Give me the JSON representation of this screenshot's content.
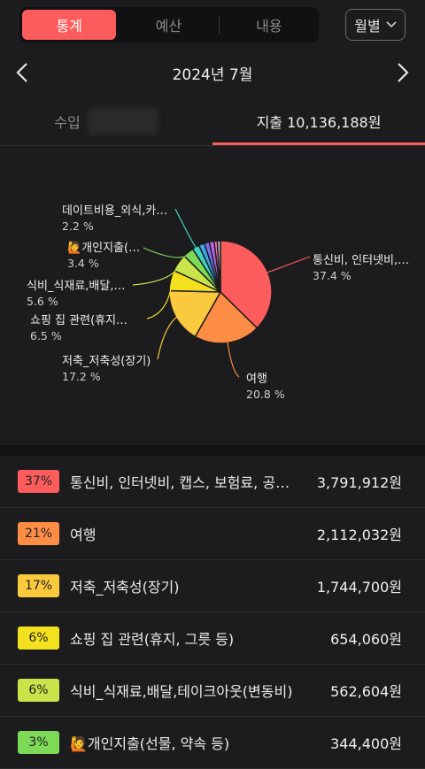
{
  "segment": {
    "tabs": [
      {
        "label": "통계",
        "active": true
      },
      {
        "label": "예산",
        "active": false
      },
      {
        "label": "내용",
        "active": false
      }
    ]
  },
  "period_select": {
    "value": "월별"
  },
  "month": {
    "title": "2024년 7월"
  },
  "tabs": {
    "income_label": "수입",
    "expense_label": "지출 10,136,188원"
  },
  "chart_data": {
    "type": "pie",
    "slices": [
      {
        "label": "통신비, 인터넷비,…",
        "pct_label": "37.4 %",
        "value": 37.4,
        "color": "#fc5c5c"
      },
      {
        "label": "여행",
        "pct_label": "20.8 %",
        "value": 20.8,
        "color": "#fd8c45"
      },
      {
        "label": "저축_저축성(장기)",
        "pct_label": "17.2 %",
        "value": 17.2,
        "color": "#fbc93d"
      },
      {
        "label": "쇼핑 집 관련(휴지…",
        "pct_label": "6.5 %",
        "value": 6.5,
        "color": "#f3e11f"
      },
      {
        "label": "식비_식재료,배달,…",
        "pct_label": "5.6 %",
        "value": 5.6,
        "color": "#c9e34a"
      },
      {
        "label": "🙋개인지출(…",
        "pct_label": "3.4 %",
        "value": 3.4,
        "color": "#7ed957"
      },
      {
        "label": "데이트비용_외식,카…",
        "pct_label": "2.2 %",
        "value": 2.2,
        "color": "#3fd6c4"
      },
      {
        "label": "",
        "value": 1.8,
        "color": "#3aa8e8"
      },
      {
        "label": "",
        "value": 1.6,
        "color": "#7a6df0"
      },
      {
        "label": "",
        "value": 1.5,
        "color": "#c166e8"
      },
      {
        "label": "",
        "value": 1.0,
        "color": "#ee6fb4"
      },
      {
        "label": "",
        "value": 1.0,
        "color": "#bfbfbf"
      }
    ]
  },
  "list": [
    {
      "pct": "37%",
      "name": "통신비, 인터넷비, 캡스, 보험료, 공과…",
      "amount": "3,791,912원",
      "color": "#fc5c5c"
    },
    {
      "pct": "21%",
      "name": "여행",
      "amount": "2,112,032원",
      "color": "#fd8c45"
    },
    {
      "pct": "17%",
      "name": "저축_저축성(장기)",
      "amount": "1,744,700원",
      "color": "#fbc93d"
    },
    {
      "pct": "6%",
      "name": "쇼핑 집 관련(휴지, 그릇 등)",
      "amount": "654,060원",
      "color": "#f3e11f"
    },
    {
      "pct": "6%",
      "name": "식비_식재료,배달,테이크아웃(변동비)",
      "amount": "562,604원",
      "color": "#c9e34a"
    },
    {
      "pct": "3%",
      "name": "🙋개인지출(선물, 약속 등)",
      "amount": "344,400원",
      "color": "#7ed957"
    }
  ]
}
